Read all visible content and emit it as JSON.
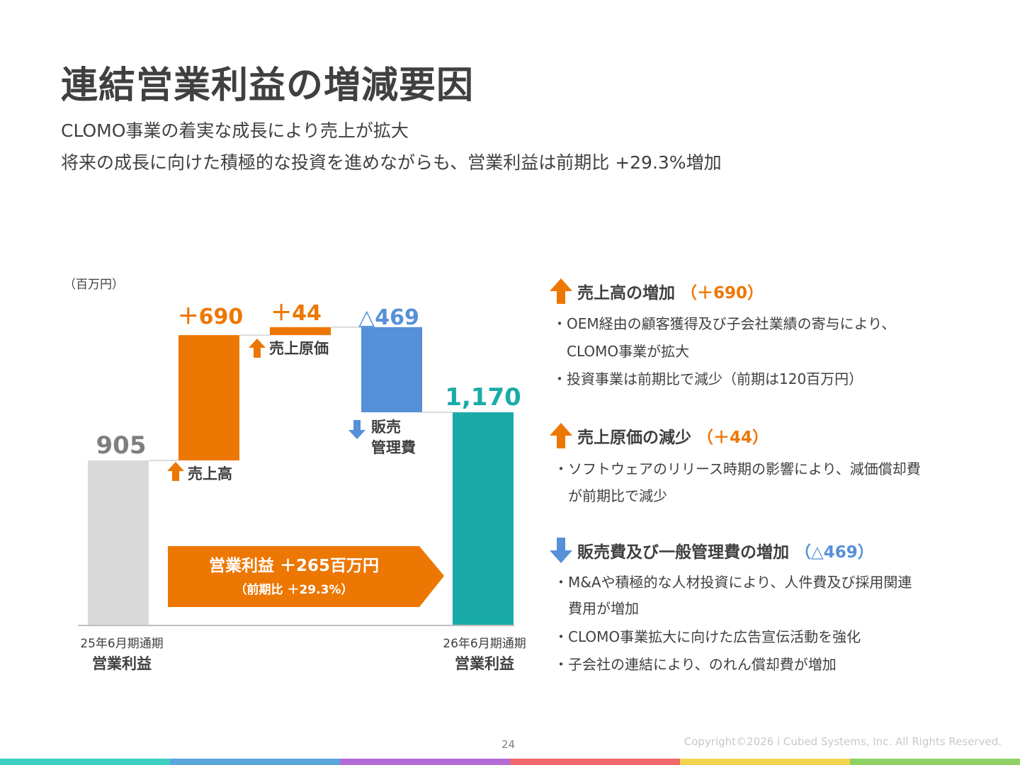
{
  "title": "連結営業利益の増減要因",
  "subtitle_lines": [
    "CLOMO事業の着実な成長により売上が拡大",
    "将来の成長に向けた積極的な投資を進めながらも、営業利益は前期比 +29.3%増加"
  ],
  "colors": {
    "orange": "#ED7703",
    "blue": "#5590D8",
    "teal": "#1AABA8",
    "gray_bar": "#D9D9D9",
    "gray_text": "#7F7F7F",
    "text": "#404040"
  },
  "chart_data": {
    "type": "bar",
    "subtype": "waterfall",
    "unit_label": "（百万円）",
    "categories": [
      "25年6月期通期 営業利益",
      "売上高",
      "売上原価",
      "販売管理費",
      "26年6月期通期 営業利益"
    ],
    "steps": [
      {
        "kind": "total",
        "value": 905,
        "value_label": "905",
        "axis_label_top": "25年6月期通期",
        "axis_label_bottom": "営業利益",
        "color": "#D9D9D9",
        "label_color": "#7F7F7F"
      },
      {
        "kind": "increase",
        "value": 690,
        "value_label": "＋690",
        "step_label": "売上高",
        "color": "#ED7703",
        "label_color": "#ED7703"
      },
      {
        "kind": "increase",
        "value": 44,
        "value_label": "＋44",
        "step_label": "売上原価",
        "color": "#ED7703",
        "label_color": "#ED7703"
      },
      {
        "kind": "decrease",
        "value": -469,
        "value_label": "△469",
        "step_label": "販売\n管理費",
        "step_label_lines": [
          "販売",
          "管理費"
        ],
        "color": "#5590D8",
        "label_color": "#5590D8"
      },
      {
        "kind": "total",
        "value": 1170,
        "value_label": "1,170",
        "axis_label_top": "26年6月期通期",
        "axis_label_bottom": "営業利益",
        "color": "#1AABA8",
        "label_color": "#1AABA8"
      }
    ],
    "callout": {
      "line1": "営業利益 ＋265百万円",
      "line2": "（前期比 ＋29.3%）",
      "color": "#ED7703"
    }
  },
  "explanations": [
    {
      "direction": "up",
      "icon": "up-arrow-icon",
      "heading": "売上高の増加",
      "value": "（＋690）",
      "value_color": "#ED7703",
      "lines": [
        "・OEM経由の顧客獲得及び子会社業績の寄与により、",
        "　CLOMO事業が拡大",
        "・投資事業は前期比で減少（前期は120百万円）"
      ]
    },
    {
      "direction": "up",
      "icon": "up-arrow-icon",
      "heading": "売上原価の減少",
      "value": "（＋44）",
      "value_color": "#ED7703",
      "lines": [
        "・ソフトウェアのリリース時期の影響により、減価償却費",
        "　が前期比で減少"
      ]
    },
    {
      "direction": "down",
      "icon": "down-arrow-icon",
      "heading": "販売費及び一般管理費の増加",
      "value": "（△469）",
      "value_color": "#5590D8",
      "lines": [
        "・M&Aや積極的な人材投資により、人件費及び採用関連",
        "　費用が増加",
        "・CLOMO事業拡大に向けた広告宣伝活動を強化",
        "・子会社の連結により、のれん償却費が増加"
      ]
    }
  ],
  "footer": {
    "page_number": "24",
    "copyright": "Copyright©2026 i Cubed Systems, Inc. All Rights Reserved.",
    "stripe_colors": [
      "#3DCFC2",
      "#58A6DC",
      "#B36CD6",
      "#F0686B",
      "#F3D44F",
      "#8FD165"
    ]
  }
}
